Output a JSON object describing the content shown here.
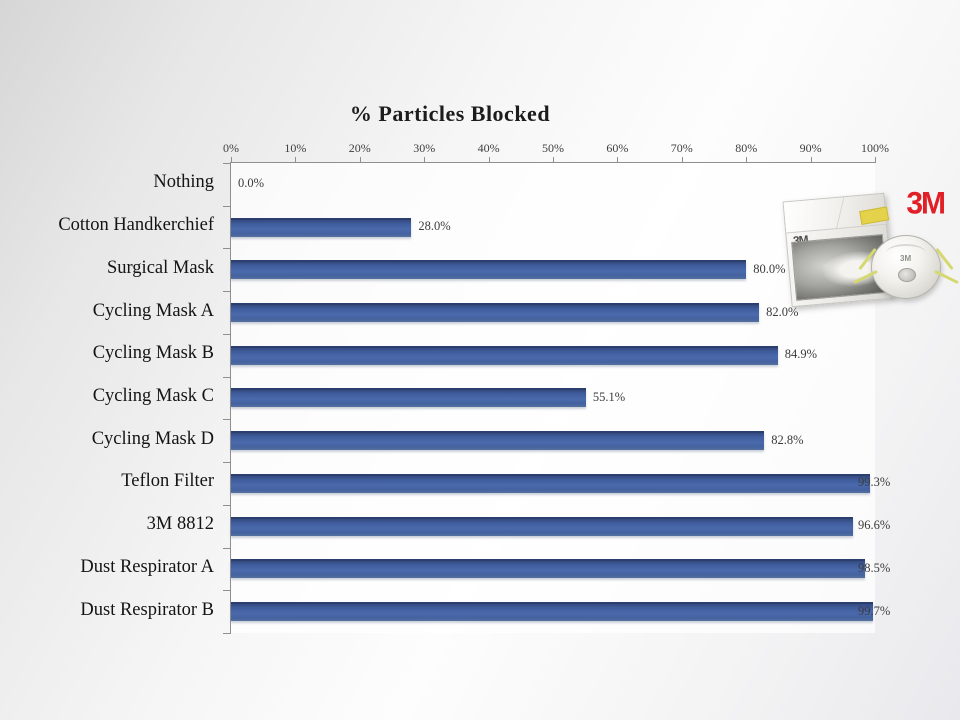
{
  "chart_data": {
    "type": "bar",
    "orientation": "horizontal",
    "title": "% Particles Blocked",
    "categories": [
      "Nothing",
      "Cotton Handkerchief",
      "Surgical Mask",
      "Cycling Mask A",
      "Cycling Mask B",
      "Cycling Mask C",
      "Cycling Mask D",
      "Teflon Filter",
      "3M 8812",
      "Dust Respirator A",
      "Dust Respirator B"
    ],
    "values": [
      0.0,
      28.0,
      80.0,
      82.0,
      84.9,
      55.1,
      82.8,
      99.3,
      96.6,
      98.5,
      99.7
    ],
    "value_labels": [
      "0.0%",
      "28.0%",
      "80.0%",
      "82.0%",
      "84.9%",
      "55.1%",
      "82.8%",
      "99.3%",
      "96.6%",
      "98.5%",
      "99.7%"
    ],
    "xlabel": "",
    "ylabel": "",
    "xlim": [
      0,
      100
    ],
    "x_ticks": [
      "0%",
      "10%",
      "20%",
      "30%",
      "40%",
      "50%",
      "60%",
      "70%",
      "80%",
      "90%",
      "100%"
    ],
    "grid": false,
    "legend": false,
    "bar_color": "#44629f",
    "axis_color": "#8f8f8f"
  },
  "product_photo": {
    "logo_text": "3M",
    "box_text": "3M",
    "mask_text": "3M"
  }
}
